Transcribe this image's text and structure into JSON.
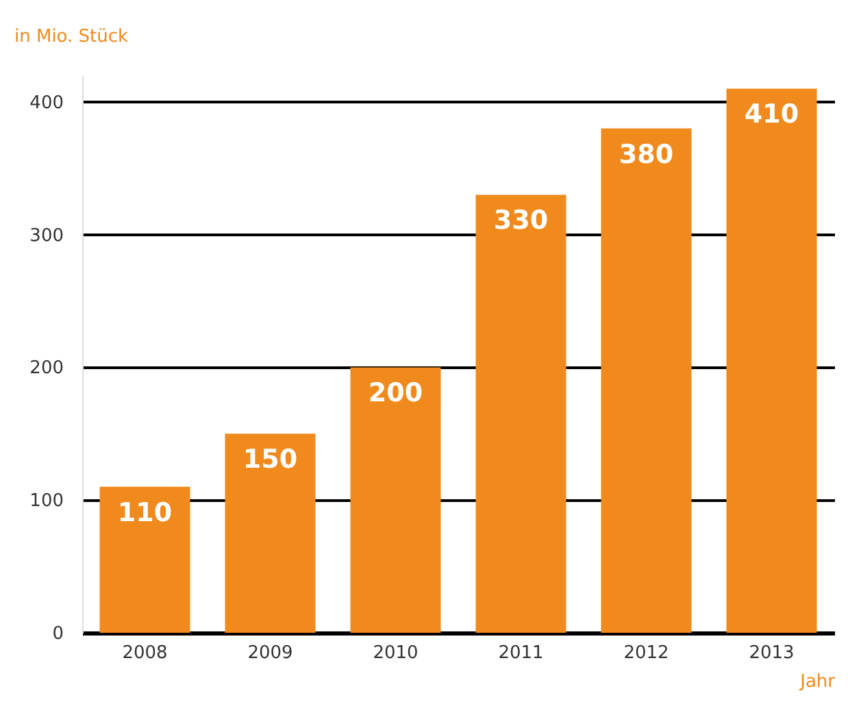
{
  "chart_data": {
    "type": "bar",
    "ylabel": "in Mio. Stück",
    "xlabel": "Jahr",
    "categories": [
      "2008",
      "2009",
      "2010",
      "2011",
      "2012",
      "2013"
    ],
    "values": [
      110,
      150,
      200,
      330,
      380,
      410
    ],
    "color": "#f08a1c",
    "ylim": [
      0,
      420
    ],
    "yticks": [
      0,
      100,
      200,
      300,
      400
    ],
    "grid": "y",
    "data_labels": true
  }
}
